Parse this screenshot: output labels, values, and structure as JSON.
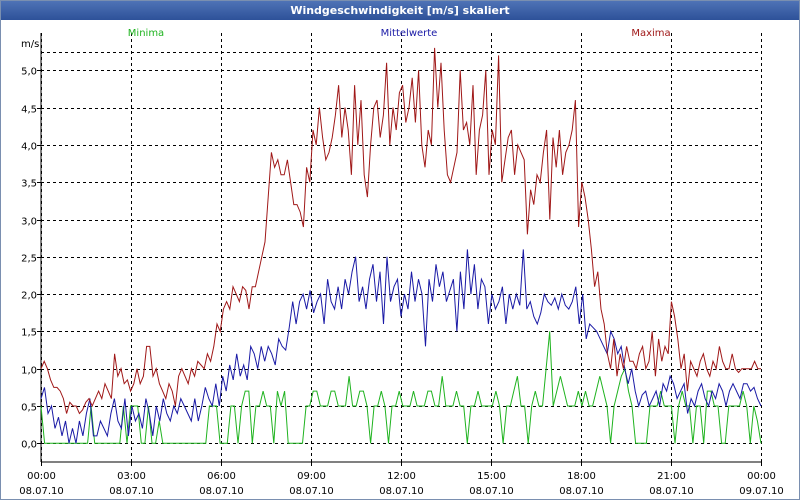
{
  "window": {
    "title": "Windgeschwindigkeit [m/s] skaliert"
  },
  "colors": {
    "minima": "#1fb31f",
    "mittel": "#1a1aa6",
    "maxima": "#a01818",
    "grid": "#000000"
  },
  "chart_data": {
    "type": "line",
    "title": "Windgeschwindigkeit [m/s] skaliert",
    "ylabel": "m/s",
    "xlabel": "",
    "ylim": [
      -0.25,
      5.5
    ],
    "y_ticks": [
      0.0,
      0.5,
      1.0,
      1.5,
      2.0,
      2.5,
      3.0,
      3.5,
      4.0,
      4.5,
      5.0
    ],
    "y_tick_labels": [
      "0,0",
      "0,5",
      "1,0",
      "1,5",
      "2,0",
      "2,5",
      "3,0",
      "3,5",
      "4,0",
      "4,5",
      "5,0"
    ],
    "x_ticks": [
      {
        "time": "00:00",
        "date": "08.07.10"
      },
      {
        "time": "03:00",
        "date": "08.07.10"
      },
      {
        "time": "06:00",
        "date": "08.07.10"
      },
      {
        "time": "09:00",
        "date": "08.07.10"
      },
      {
        "time": "12:00",
        "date": "08.07.10"
      },
      {
        "time": "15:00",
        "date": "08.07.10"
      },
      {
        "time": "18:00",
        "date": "08.07.10"
      },
      {
        "time": "21:00",
        "date": "08.07.10"
      },
      {
        "time": "00:00",
        "date": "09.07.10"
      }
    ],
    "grid": true,
    "series": [
      {
        "name": "Minima",
        "values": [
          0.5,
          0.0,
          0.0,
          0.0,
          0.0,
          0.0,
          0.0,
          0.0,
          0.0,
          0.0,
          0.0,
          0.0,
          0.0,
          0.0,
          0.5,
          0.0,
          0.0,
          0.0,
          0.0,
          0.0,
          0.0,
          0.0,
          0.0,
          0.5,
          0.0,
          0.5,
          0.5,
          0.5,
          0.0,
          0.0,
          0.5,
          0.0,
          0.0,
          0.3,
          0.0,
          0.0,
          0.0,
          0.0,
          0.0,
          0.0,
          0.0,
          0.0,
          0.0,
          0.0,
          0.0,
          0.0,
          0.0,
          0.5,
          0.5,
          0.5,
          0.0,
          0.0,
          0.0,
          0.5,
          0.5,
          0.0,
          0.5,
          0.7,
          0.7,
          0.0,
          0.5,
          0.5,
          0.7,
          0.5,
          0.5,
          0.0,
          0.7,
          0.5,
          0.7,
          0.0,
          0.0,
          0.0,
          0.0,
          0.0,
          0.5,
          0.5,
          0.7,
          0.7,
          0.5,
          0.5,
          0.5,
          0.7,
          0.7,
          0.5,
          0.5,
          0.5,
          0.9,
          0.5,
          0.5,
          0.7,
          0.7,
          0.5,
          0.0,
          0.5,
          0.5,
          0.7,
          0.5,
          0.0,
          0.5,
          0.5,
          0.7,
          0.5,
          0.5,
          0.5,
          0.7,
          0.5,
          0.5,
          0.5,
          0.7,
          0.7,
          0.5,
          0.5,
          0.9,
          0.5,
          0.5,
          0.5,
          0.7,
          0.5,
          0.5,
          0.0,
          0.5,
          0.5,
          0.7,
          0.5,
          0.5,
          0.5,
          0.5,
          0.7,
          0.5,
          0.0,
          0.5,
          0.5,
          0.7,
          0.9,
          0.5,
          0.5,
          0.0,
          0.5,
          0.7,
          0.5,
          0.5,
          1.0,
          1.5,
          0.5,
          0.7,
          0.9,
          0.7,
          0.5,
          0.5,
          0.5,
          0.7,
          0.5,
          0.7,
          0.5,
          0.5,
          0.7,
          0.9,
          0.7,
          0.5,
          0.0,
          0.5,
          0.7,
          0.9,
          1.0,
          0.7,
          0.5,
          0.0,
          0.0,
          0.0,
          0.0,
          0.5,
          0.5,
          0.5,
          0.7,
          0.5,
          0.5,
          0.5,
          0.0,
          0.5,
          0.7,
          0.5,
          0.5,
          0.0,
          0.5,
          0.5,
          0.0,
          0.7,
          0.7,
          0.5,
          0.5,
          0.0,
          0.0,
          0.5,
          0.5,
          0.5,
          0.5,
          0.7,
          0.5,
          0.0,
          0.5,
          0.3,
          0.0
        ]
      },
      {
        "name": "Mittelwerte",
        "values": [
          0.6,
          0.75,
          0.4,
          0.5,
          0.2,
          0.35,
          0.1,
          0.3,
          0.0,
          0.2,
          0.0,
          0.3,
          0.1,
          0.4,
          0.6,
          0.1,
          0.1,
          0.3,
          0.2,
          0.1,
          0.4,
          0.6,
          0.3,
          0.2,
          0.6,
          0.1,
          0.5,
          0.3,
          0.4,
          0.2,
          0.6,
          0.4,
          0.1,
          0.5,
          0.3,
          0.6,
          0.4,
          0.3,
          0.5,
          0.4,
          0.6,
          0.5,
          0.4,
          0.3,
          0.6,
          0.3,
          0.5,
          0.75,
          0.6,
          0.5,
          0.8,
          0.5,
          0.9,
          0.7,
          1.05,
          0.85,
          1.2,
          0.9,
          1.05,
          0.85,
          1.3,
          1.2,
          1.0,
          1.3,
          1.1,
          1.3,
          1.2,
          1.05,
          1.4,
          1.3,
          1.25,
          1.55,
          1.9,
          1.6,
          1.9,
          2.0,
          1.8,
          2.05,
          1.75,
          1.9,
          2.0,
          1.6,
          2.2,
          1.9,
          1.8,
          2.1,
          1.8,
          2.2,
          2.0,
          2.3,
          2.5,
          1.9,
          2.1,
          1.8,
          2.2,
          2.4,
          1.9,
          2.3,
          1.6,
          2.5,
          1.9,
          2.1,
          2.2,
          1.7,
          2.0,
          1.8,
          2.3,
          1.9,
          2.2,
          2.0,
          1.3,
          2.2,
          1.9,
          2.4,
          2.1,
          2.3,
          1.9,
          2.05,
          2.2,
          1.5,
          2.3,
          1.8,
          2.6,
          2.0,
          2.4,
          1.8,
          2.2,
          2.1,
          1.6,
          2.0,
          1.8,
          1.9,
          2.1,
          1.6,
          2.0,
          1.8,
          2.0,
          1.85,
          2.6,
          1.8,
          1.9,
          1.7,
          1.6,
          1.75,
          2.0,
          1.9,
          1.85,
          1.95,
          1.8,
          2.0,
          1.85,
          1.8,
          1.9,
          2.1,
          1.6,
          2.0,
          1.4,
          1.6,
          1.55,
          1.5,
          1.4,
          1.3,
          1.2,
          1.5,
          1.4,
          1.2,
          1.3,
          1.0,
          0.8,
          1.0,
          0.7,
          0.5,
          0.65,
          0.7,
          0.5,
          0.6,
          0.7,
          0.5,
          0.8,
          0.7,
          0.9,
          0.8,
          0.6,
          0.7,
          0.8,
          0.4,
          0.6,
          0.5,
          0.7,
          0.8,
          0.6,
          0.5,
          0.7,
          0.6,
          0.8,
          0.7,
          0.5,
          0.7,
          0.8,
          0.7,
          0.6,
          0.8,
          0.8,
          0.7,
          0.75,
          0.6,
          0.5
        ]
      },
      {
        "name": "Maxima",
        "values": [
          1.0,
          1.1,
          1.0,
          0.85,
          0.75,
          0.75,
          0.7,
          0.6,
          0.4,
          0.55,
          0.5,
          0.5,
          0.4,
          0.45,
          0.55,
          0.6,
          0.5,
          0.6,
          0.7,
          0.6,
          0.8,
          0.7,
          0.6,
          1.2,
          0.9,
          1.0,
          0.8,
          0.85,
          0.7,
          0.8,
          1.0,
          0.8,
          0.9,
          1.3,
          1.3,
          0.9,
          1.0,
          0.8,
          0.7,
          0.6,
          0.8,
          0.7,
          0.5,
          0.9,
          1.0,
          0.9,
          0.8,
          1.0,
          0.9,
          1.1,
          1.05,
          1.0,
          1.2,
          1.1,
          1.3,
          1.6,
          1.5,
          1.8,
          1.9,
          1.8,
          2.1,
          2.0,
          1.9,
          2.1,
          2.05,
          1.8,
          2.1,
          2.1,
          2.3,
          2.5,
          2.7,
          3.3,
          3.9,
          3.7,
          3.8,
          3.6,
          3.6,
          3.8,
          3.5,
          3.2,
          3.2,
          3.1,
          2.9,
          3.7,
          3.5,
          4.2,
          4.0,
          4.5,
          4.1,
          3.8,
          3.9,
          4.1,
          4.4,
          4.8,
          4.1,
          4.5,
          4.2,
          3.6,
          4.8,
          4.0,
          4.6,
          3.6,
          3.3,
          4.0,
          4.5,
          4.6,
          4.1,
          4.4,
          5.1,
          4.0,
          4.5,
          4.2,
          4.7,
          4.8,
          4.3,
          4.5,
          4.9,
          4.3,
          5.0,
          4.0,
          3.7,
          4.2,
          4.0,
          5.3,
          4.5,
          5.1,
          4.2,
          3.6,
          3.5,
          3.7,
          3.9,
          5.0,
          4.2,
          4.3,
          4.0,
          4.8,
          3.6,
          4.2,
          4.4,
          5.0,
          3.6,
          4.2,
          4.0,
          5.2,
          3.5,
          3.8,
          4.1,
          4.2,
          3.6,
          4.0,
          3.9,
          3.8,
          2.8,
          3.4,
          3.2,
          3.6,
          3.5,
          3.9,
          4.2,
          3.0,
          4.1,
          3.7,
          4.2,
          3.6,
          3.9,
          4.0,
          4.2,
          4.6,
          2.9,
          3.5,
          3.3,
          3.0,
          2.6,
          2.1,
          2.3,
          1.8,
          1.6,
          1.2,
          1.0,
          1.4,
          0.9,
          1.2,
          1.0,
          1.3,
          1.1,
          1.1,
          1.0,
          1.2,
          1.3,
          1.0,
          1.1,
          1.5,
          0.9,
          1.4,
          1.1,
          1.3,
          1.2,
          1.9,
          1.7,
          1.4,
          1.0,
          1.2,
          0.7,
          1.1,
          1.0,
          0.9,
          1.1,
          1.2,
          1.0,
          0.9,
          1.1,
          1.0,
          1.3,
          1.1,
          1.0,
          1.0,
          1.2,
          1.0,
          0.95,
          1.0,
          1.0,
          1.0,
          1.0,
          1.1,
          1.0,
          1.0
        ]
      }
    ]
  }
}
